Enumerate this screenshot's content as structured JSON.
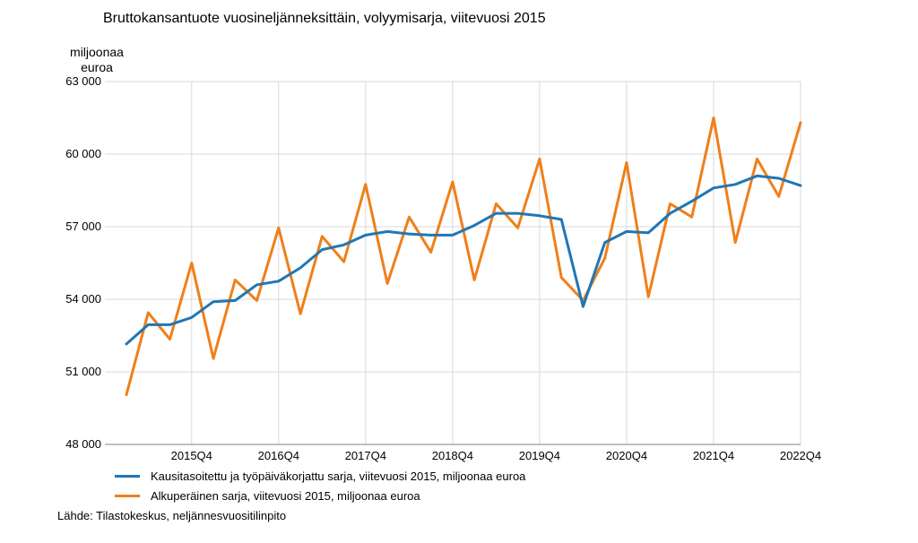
{
  "chart_data": {
    "type": "line",
    "title": "Bruttokansantuote vuosineljänneksittäin, volyymisarja, viitevuosi 2015",
    "ylabel": "miljoonaa euroa",
    "ylim": [
      48000,
      63000
    ],
    "yticks": [
      48000,
      51000,
      54000,
      57000,
      60000,
      63000
    ],
    "ytick_labels": [
      "48 000",
      "51 000",
      "54 000",
      "57 000",
      "60 000",
      "63 000"
    ],
    "x": [
      "2015Q1",
      "2015Q2",
      "2015Q3",
      "2015Q4",
      "2016Q1",
      "2016Q2",
      "2016Q3",
      "2016Q4",
      "2017Q1",
      "2017Q2",
      "2017Q3",
      "2017Q4",
      "2018Q1",
      "2018Q2",
      "2018Q3",
      "2018Q4",
      "2019Q1",
      "2019Q2",
      "2019Q3",
      "2019Q4",
      "2020Q1",
      "2020Q2",
      "2020Q3",
      "2020Q4",
      "2021Q1",
      "2021Q2",
      "2021Q3",
      "2021Q4",
      "2022Q1",
      "2022Q2",
      "2022Q3",
      "2022Q4"
    ],
    "xtick_labels": [
      "2015Q4",
      "2016Q4",
      "2017Q4",
      "2018Q4",
      "2019Q4",
      "2020Q4",
      "2021Q4",
      "2022Q4"
    ],
    "series": [
      {
        "name": "Kausitasoitettu ja työpäiväkorjattu sarja, viitevuosi 2015, miljoonaa euroa",
        "color": "#1f77b4",
        "values": [
          52150,
          52950,
          52950,
          53250,
          53900,
          53950,
          54600,
          54750,
          55300,
          56050,
          56250,
          56650,
          56800,
          56700,
          56650,
          56650,
          57050,
          57550,
          57550,
          57450,
          57300,
          53700,
          56350,
          56800,
          56750,
          57550,
          58050,
          58600,
          58750,
          59100,
          59000,
          58700
        ]
      },
      {
        "name": "Alkuperäinen sarja, viitevuosi 2015, miljoonaa euroa",
        "color": "#f07f1a",
        "values": [
          50050,
          53450,
          52350,
          55500,
          51550,
          54800,
          53950,
          56950,
          53400,
          56600,
          55550,
          58750,
          54650,
          57400,
          55950,
          58850,
          54800,
          57950,
          56950,
          59800,
          54900,
          53950,
          55700,
          59650,
          54100,
          57950,
          57400,
          61500,
          56350,
          59800,
          58250,
          61300
        ]
      }
    ],
    "legend_position": "bottom-left",
    "source": "Lähde: Tilastokeskus, neljännesvuositilinpito"
  }
}
